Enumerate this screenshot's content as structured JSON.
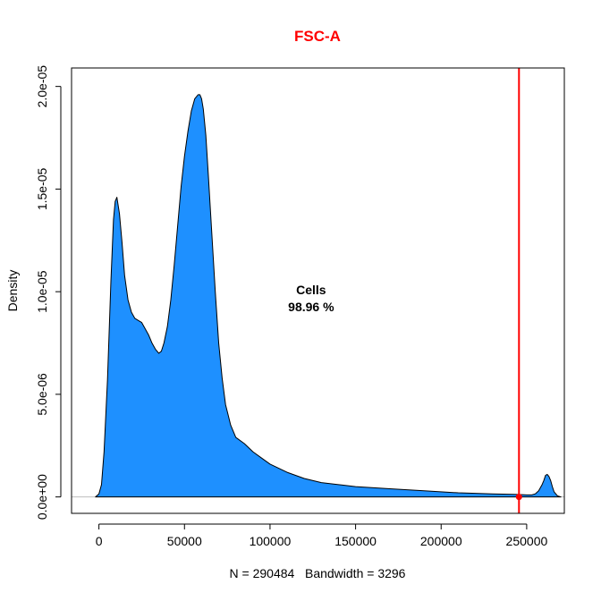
{
  "chart_data": {
    "type": "area",
    "title": "FSC-A",
    "title_color": "#ff0000",
    "xlabel": "N = 290484   Bandwidth = 3296",
    "ylabel": "Density",
    "xlim": [
      -16000,
      272000
    ],
    "ylim": [
      -8e-07,
      2.09e-05
    ],
    "x_ticks": [
      0,
      50000,
      100000,
      150000,
      200000,
      250000
    ],
    "x_tick_labels": [
      "0",
      "50000",
      "100000",
      "150000",
      "200000",
      "250000"
    ],
    "y_ticks": [
      0,
      5e-06,
      1e-05,
      1.5e-05,
      2e-05
    ],
    "y_tick_labels": [
      "0.0e+00",
      "5.0e-06",
      "1.0e-05",
      "1.5e-05",
      "2.0e-05"
    ],
    "fill_color": "#1e90ff",
    "baseline_color": "#bebebe",
    "threshold_color": "#ff0000",
    "threshold_x": 245500,
    "grid": false,
    "legend": "none",
    "series": [
      {
        "x": [
          -2000,
          0,
          1500,
          3000,
          5000,
          7000,
          8500,
          9500,
          10500,
          12000,
          13500,
          15000,
          17000,
          19000,
          21000,
          23000,
          25000,
          27000,
          29000,
          31000,
          33000,
          35000,
          36500,
          38000,
          40000,
          42000,
          44000,
          46000,
          48000,
          50000,
          52000,
          54000,
          56000,
          58000,
          59000,
          60000,
          61000,
          62500,
          64000,
          66000,
          68000,
          70000,
          72000,
          74000,
          77000,
          80000,
          85000,
          90000,
          95000,
          100000,
          110000,
          120000,
          130000,
          140000,
          150000,
          170000,
          190000,
          210000,
          230000,
          245000,
          250000,
          253000,
          255000,
          257000,
          259000,
          260000,
          261000,
          262000,
          263000,
          264000,
          265000,
          266000,
          268000,
          270000
        ],
        "y": [
          0,
          1.5e-07,
          6e-07,
          2.2e-06,
          5.7e-06,
          1.05e-05,
          1.35e-05,
          1.44e-05,
          1.46e-05,
          1.38e-05,
          1.24e-05,
          1.08e-05,
          9.6e-06,
          9e-06,
          8.7e-06,
          8.6e-06,
          8.5e-06,
          8.2e-06,
          7.9e-06,
          7.5e-06,
          7.2e-06,
          7e-06,
          7.1e-06,
          7.5e-06,
          8.3e-06,
          9.6e-06,
          1.13e-05,
          1.32e-05,
          1.51e-05,
          1.66e-05,
          1.78e-05,
          1.88e-05,
          1.94e-05,
          1.96e-05,
          1.96e-05,
          1.94e-05,
          1.89e-05,
          1.76e-05,
          1.56e-05,
          1.28e-05,
          1e-05,
          7.5e-06,
          5.8e-06,
          4.5e-06,
          3.5e-06,
          2.9e-06,
          2.6e-06,
          2.2e-06,
          1.9e-06,
          1.6e-06,
          1.2e-06,
          9e-07,
          7e-07,
          6e-07,
          5e-07,
          4e-07,
          3e-07,
          2e-07,
          1.5e-07,
          1.2e-07,
          1e-07,
          1e-07,
          1.5e-07,
          3e-07,
          6e-07,
          8e-07,
          1.05e-06,
          1.1e-06,
          1e-06,
          8e-07,
          5e-07,
          2.5e-07,
          5e-08,
          0
        ]
      }
    ],
    "annotations": [
      {
        "line1": "Cells",
        "line2": "98.96 %",
        "x": 124000,
        "y": 9.7e-06
      }
    ]
  }
}
